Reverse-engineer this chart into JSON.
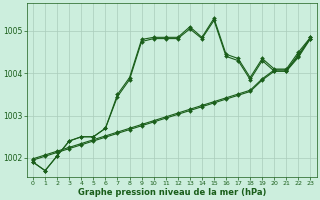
{
  "xlabel": "Graphe pression niveau de la mer (hPa)",
  "xlim": [
    -0.5,
    23.5
  ],
  "ylim": [
    1001.55,
    1005.65
  ],
  "yticks": [
    1002,
    1003,
    1004,
    1005
  ],
  "xticks": [
    0,
    1,
    2,
    3,
    4,
    5,
    6,
    7,
    8,
    9,
    10,
    11,
    12,
    13,
    14,
    15,
    16,
    17,
    18,
    19,
    20,
    21,
    22,
    23
  ],
  "bg_color": "#cceedd",
  "grid_color": "#aaccbb",
  "line_color": "#1a5e1a",
  "line1": [
    1001.9,
    1001.7,
    1002.05,
    1002.4,
    1002.5,
    1002.5,
    1002.7,
    1003.5,
    1003.9,
    1004.8,
    1004.85,
    1004.85,
    1004.85,
    1005.1,
    1004.85,
    1005.3,
    1004.45,
    1004.35,
    1003.9,
    1004.35,
    1004.1,
    1004.1,
    1004.5,
    1004.85
  ],
  "line2": [
    1001.9,
    1001.7,
    1002.05,
    1002.4,
    1002.5,
    1002.5,
    1002.7,
    1003.45,
    1003.85,
    1004.75,
    1004.82,
    1004.82,
    1004.82,
    1005.05,
    1004.82,
    1005.25,
    1004.4,
    1004.3,
    1003.85,
    1004.3,
    1004.05,
    1004.05,
    1004.45,
    1004.82
  ],
  "trend1": [
    1001.95,
    1002.04,
    1002.13,
    1002.22,
    1002.31,
    1002.4,
    1002.49,
    1002.58,
    1002.67,
    1002.76,
    1002.85,
    1002.94,
    1003.03,
    1003.12,
    1003.21,
    1003.3,
    1003.39,
    1003.48,
    1003.57,
    1003.84,
    1004.05,
    1004.05,
    1004.38,
    1004.82
  ],
  "trend2": [
    1001.98,
    1002.07,
    1002.16,
    1002.25,
    1002.34,
    1002.43,
    1002.52,
    1002.61,
    1002.7,
    1002.79,
    1002.88,
    1002.97,
    1003.06,
    1003.15,
    1003.24,
    1003.33,
    1003.42,
    1003.51,
    1003.6,
    1003.87,
    1004.08,
    1004.08,
    1004.41,
    1004.85
  ],
  "markersize": 2.0,
  "linewidth": 0.8
}
